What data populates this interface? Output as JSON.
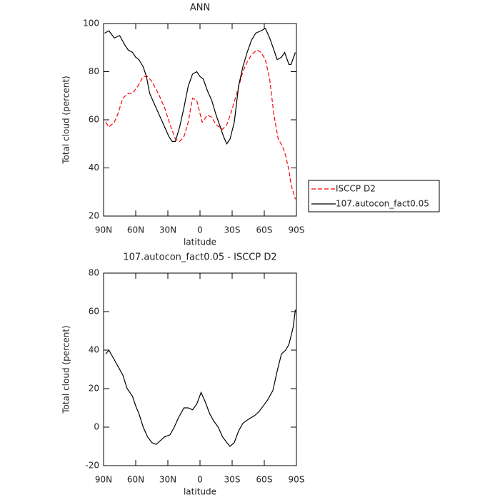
{
  "chart_data": [
    {
      "type": "line",
      "title": "ANN",
      "xlabel": "latitude",
      "ylabel": "Total cloud (percent)",
      "xlim": [
        90,
        -90
      ],
      "xticks": [
        {
          "value": 90,
          "label": "90N"
        },
        {
          "value": 60,
          "label": "60N"
        },
        {
          "value": 30,
          "label": "30N"
        },
        0,
        {
          "value": -30,
          "label": "30S"
        },
        {
          "value": -60,
          "label": "60S"
        },
        {
          "value": -90,
          "label": "90S"
        }
      ],
      "ylim": [
        20,
        100
      ],
      "yticks": [
        20,
        40,
        60,
        80,
        100
      ],
      "legend": "right",
      "series": [
        {
          "name": "ISCCP D2",
          "color": "#ff0000",
          "style": "dashed",
          "x": [
            88,
            85,
            80,
            77,
            72,
            67,
            63,
            58,
            53,
            49,
            45,
            39,
            33,
            28,
            23,
            19,
            15,
            11,
            7,
            3,
            -2,
            -7,
            -11,
            -15,
            -21,
            -25,
            -29,
            -35,
            -40,
            -44,
            -48,
            -53,
            -57,
            -61,
            -65,
            -69,
            -73,
            -77,
            -80,
            -83,
            -85,
            -89
          ],
          "values": [
            59,
            57,
            59,
            62,
            69,
            71,
            71,
            74,
            78,
            78,
            76,
            71,
            65,
            58,
            52,
            51,
            53,
            59,
            69,
            68,
            59,
            62,
            61,
            58,
            56,
            58,
            63,
            72,
            80,
            84,
            87,
            89,
            88,
            85,
            77,
            62,
            52,
            49,
            45,
            39,
            33,
            27
          ]
        },
        {
          "name": "107.autocon_fact0.05",
          "color": "#000000",
          "style": "solid",
          "x": [
            89,
            85,
            80,
            75,
            70,
            67,
            63,
            60,
            57,
            53,
            50,
            47,
            43,
            39,
            33,
            29,
            26,
            23,
            19,
            15,
            11,
            7,
            3,
            0,
            -3,
            -7,
            -11,
            -15,
            -19,
            -22,
            -25,
            -28,
            -32,
            -36,
            -40,
            -44,
            -48,
            -52,
            -57,
            -61,
            -65,
            -69,
            -72,
            -76,
            -79,
            -83,
            -85,
            -89
          ],
          "values": [
            96,
            97,
            94,
            95,
            91,
            89,
            88,
            86,
            85,
            82,
            78,
            71,
            67,
            63,
            57,
            53,
            51,
            51,
            57,
            65,
            74,
            79,
            80,
            78,
            77,
            72,
            68,
            62,
            57,
            53,
            50,
            52,
            59,
            74,
            82,
            88,
            93,
            96,
            97,
            98,
            94,
            89,
            85,
            86,
            88,
            83,
            83,
            88
          ]
        }
      ]
    },
    {
      "type": "line",
      "title": "107.autocon_fact0.05 - ISCCP D2",
      "xlabel": "latitude",
      "ylabel": "Total cloud (percent)",
      "xlim": [
        90,
        -90
      ],
      "xticks": [
        {
          "value": 90,
          "label": "90N"
        },
        {
          "value": 60,
          "label": "60N"
        },
        {
          "value": 30,
          "label": "30N"
        },
        0,
        {
          "value": -30,
          "label": "30S"
        },
        {
          "value": -60,
          "label": "60S"
        },
        {
          "value": -90,
          "label": "90S"
        }
      ],
      "ylim": [
        -20,
        80
      ],
      "yticks": [
        -20,
        0,
        20,
        40,
        60,
        80
      ],
      "series": [
        {
          "color": "#000000",
          "style": "solid",
          "x": [
            88,
            85,
            80,
            76,
            72,
            68,
            63,
            60,
            57,
            53,
            49,
            45,
            41,
            37,
            33,
            28,
            24,
            20,
            15,
            11,
            7,
            3,
            -1,
            -5,
            -9,
            -13,
            -17,
            -21,
            -25,
            -28,
            -32,
            -36,
            -40,
            -45,
            -51,
            -55,
            -59,
            -63,
            -68,
            -72,
            -76,
            -80,
            -83,
            -87,
            -89
          ],
          "values": [
            38,
            40,
            35,
            31,
            27,
            20,
            16,
            11,
            7,
            0,
            -5,
            -8,
            -9,
            -7,
            -5,
            -4,
            0,
            5,
            10,
            10,
            9,
            12,
            18,
            13,
            7,
            3,
            0,
            -5,
            -8,
            -10,
            -8,
            -2,
            2,
            4,
            6,
            8,
            11,
            14,
            19,
            29,
            38,
            40,
            43,
            52,
            61
          ]
        }
      ]
    }
  ]
}
